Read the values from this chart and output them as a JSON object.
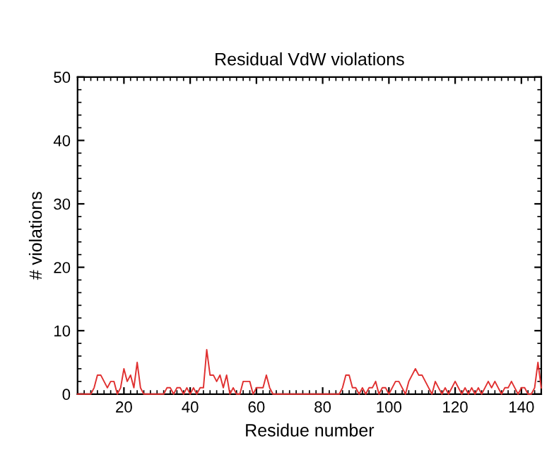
{
  "chart_data": {
    "type": "line",
    "title": "Residual VdW violations",
    "xlabel": "Residue number",
    "ylabel": "# violations",
    "x": [
      6,
      7,
      8,
      9,
      10,
      11,
      12,
      13,
      14,
      15,
      16,
      17,
      18,
      19,
      20,
      21,
      22,
      23,
      24,
      25,
      26,
      27,
      28,
      29,
      30,
      31,
      32,
      33,
      34,
      35,
      36,
      37,
      38,
      39,
      40,
      41,
      42,
      43,
      44,
      45,
      46,
      47,
      48,
      49,
      50,
      51,
      52,
      53,
      54,
      55,
      56,
      57,
      58,
      59,
      60,
      61,
      62,
      63,
      64,
      65,
      66,
      67,
      68,
      69,
      70,
      71,
      72,
      73,
      74,
      75,
      76,
      77,
      78,
      79,
      80,
      81,
      82,
      83,
      84,
      85,
      86,
      87,
      88,
      89,
      90,
      91,
      92,
      93,
      94,
      95,
      96,
      97,
      98,
      99,
      100,
      101,
      102,
      103,
      104,
      105,
      106,
      107,
      108,
      109,
      110,
      111,
      112,
      113,
      114,
      115,
      116,
      117,
      118,
      119,
      120,
      121,
      122,
      123,
      124,
      125,
      126,
      127,
      128,
      129,
      130,
      131,
      132,
      133,
      134,
      135,
      136,
      137,
      138,
      139,
      140,
      141,
      142,
      143,
      144,
      145,
      146
    ],
    "series": [
      {
        "color": "#e03030",
        "values": [
          0,
          0,
          0,
          0,
          0,
          1,
          3,
          3,
          2,
          1,
          2,
          2,
          0,
          1,
          4,
          2,
          3,
          1,
          5,
          1,
          0,
          0,
          0,
          0,
          0,
          0,
          0,
          1,
          1,
          0,
          1,
          1,
          0,
          1,
          0,
          1,
          0,
          1,
          1,
          7,
          3,
          3,
          2,
          3,
          1,
          3,
          0,
          1,
          0,
          0,
          2,
          2,
          2,
          0,
          1,
          1,
          1,
          3,
          1,
          0,
          0,
          0,
          0,
          0,
          0,
          0,
          0,
          0,
          0,
          0,
          0,
          0,
          0,
          0,
          0,
          0,
          0,
          0,
          0,
          0,
          1,
          3,
          3,
          1,
          1,
          0,
          1,
          0,
          1,
          1,
          2,
          0,
          1,
          1,
          0,
          1,
          2,
          2,
          1,
          0,
          2,
          3,
          4,
          3,
          3,
          2,
          1,
          0,
          2,
          1,
          0,
          1,
          0,
          1,
          2,
          1,
          0,
          1,
          0,
          1,
          0,
          1,
          0,
          1,
          2,
          1,
          2,
          1,
          0,
          1,
          1,
          2,
          1,
          0,
          1,
          1,
          0,
          0,
          1,
          5,
          1
        ]
      }
    ],
    "xlim": [
      6,
      146
    ],
    "ylim": [
      0,
      50
    ],
    "xticks": [
      20,
      40,
      60,
      80,
      100,
      120,
      140
    ],
    "yticks": [
      0,
      10,
      20,
      30,
      40,
      50
    ],
    "grid": false,
    "marker": "none",
    "line_style": "solid"
  }
}
